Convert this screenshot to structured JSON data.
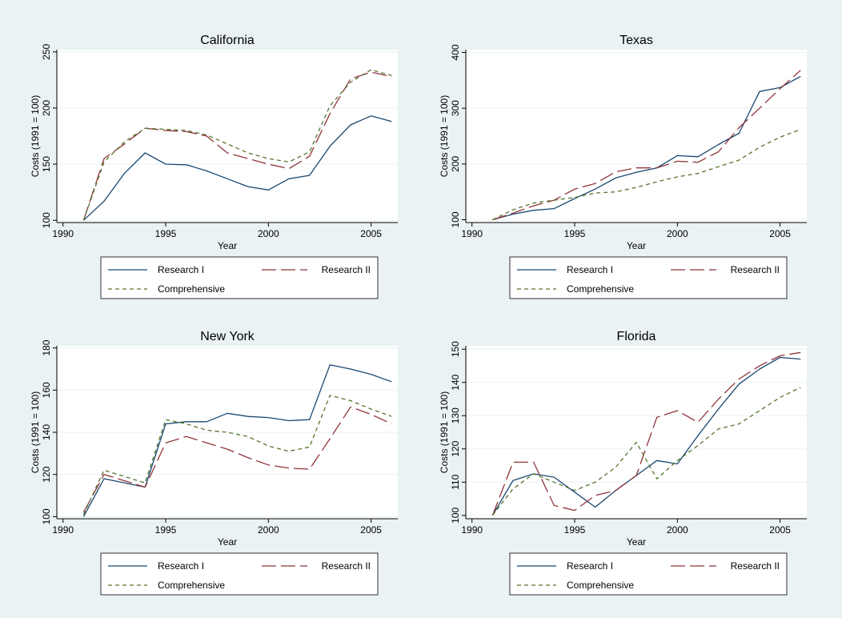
{
  "figure": {
    "background": "#eaf2f3",
    "plot_background": "#ffffff",
    "grid_color": "#eaf2f3",
    "axis_color": "#000000"
  },
  "series_styles": [
    {
      "name": "Research I",
      "color": "#1a476f",
      "dash": "solid"
    },
    {
      "name": "Research II",
      "color": "#90353b",
      "dash": "long-dash"
    },
    {
      "name": "Comprehensive",
      "color": "#55752f",
      "dash": "short-dash"
    }
  ],
  "chart_data": [
    {
      "type": "line",
      "title": "California",
      "xlabel": "Year",
      "ylabel": "Costs (1991 = 100)",
      "xlim": [
        1989.7,
        2006.3
      ],
      "ylim": [
        98,
        252
      ],
      "xticks": [
        1990,
        1995,
        2000,
        2005
      ],
      "yticks": [
        100,
        150,
        200,
        250
      ],
      "grid": true,
      "legend": "bottom",
      "x": [
        1991,
        1992,
        1993,
        1994,
        1995,
        1996,
        1997,
        1998,
        1999,
        2000,
        2001,
        2002,
        2003,
        2004,
        2005,
        2006
      ],
      "series": [
        {
          "name": "Research I",
          "values": [
            100,
            117,
            142,
            160,
            150,
            149.5,
            144,
            137,
            130,
            127,
            137,
            140,
            166,
            185,
            193,
            188
          ]
        },
        {
          "name": "Research II",
          "values": [
            100,
            155,
            168,
            182,
            180,
            179,
            175,
            160,
            155,
            150,
            146,
            157,
            195,
            226,
            232,
            228
          ]
        },
        {
          "name": "Comprehensive",
          "values": [
            100,
            152,
            170,
            182,
            181,
            180,
            176,
            168,
            160,
            155,
            152,
            161,
            202,
            223,
            234,
            229
          ]
        }
      ]
    },
    {
      "type": "line",
      "title": "Texas",
      "xlabel": "Year",
      "ylabel": "Costs (1991 = 100)",
      "xlim": [
        1989.7,
        2006.3
      ],
      "ylim": [
        95,
        405
      ],
      "xticks": [
        1990,
        1995,
        2000,
        2005
      ],
      "yticks": [
        100,
        200,
        300,
        400
      ],
      "grid": true,
      "legend": "bottom",
      "x": [
        1991,
        1992,
        1993,
        1994,
        1995,
        1996,
        1997,
        1998,
        1999,
        2000,
        2001,
        2002,
        2003,
        2004,
        2005,
        2006
      ],
      "series": [
        {
          "name": "Research I",
          "values": [
            100,
            110,
            117,
            120,
            138,
            155,
            175,
            185,
            193,
            215,
            213,
            235,
            255,
            330,
            337,
            357
          ]
        },
        {
          "name": "Research II",
          "values": [
            100,
            112,
            125,
            135,
            155,
            165,
            186,
            193,
            193,
            205,
            203,
            222,
            265,
            300,
            335,
            368
          ]
        },
        {
          "name": "Comprehensive",
          "values": [
            100,
            118,
            130,
            135,
            140,
            148,
            150,
            158,
            168,
            177,
            183,
            195,
            207,
            230,
            248,
            262
          ]
        }
      ]
    },
    {
      "type": "line",
      "title": "New York",
      "xlabel": "Year",
      "ylabel": "Costs (1991 = 100)",
      "xlim": [
        1989.7,
        2006.3
      ],
      "ylim": [
        99,
        181
      ],
      "xticks": [
        1990,
        1995,
        2000,
        2005
      ],
      "yticks": [
        100,
        120,
        140,
        160,
        180
      ],
      "grid": true,
      "legend": "bottom",
      "x": [
        1991,
        1992,
        1993,
        1994,
        1995,
        1996,
        1997,
        1998,
        1999,
        2000,
        2001,
        2002,
        2003,
        2004,
        2005,
        2006
      ],
      "series": [
        {
          "name": "Research I",
          "values": [
            100,
            118,
            116,
            114,
            144,
            145,
            145,
            149,
            147.5,
            147,
            145.5,
            146,
            172,
            170,
            167.5,
            164
          ]
        },
        {
          "name": "Research II",
          "values": [
            102,
            120,
            117,
            114,
            135,
            138,
            135,
            132,
            128,
            124.5,
            123,
            122.5,
            137,
            152,
            148.5,
            144
          ]
        },
        {
          "name": "Comprehensive",
          "values": [
            101,
            122,
            119,
            116,
            146,
            144,
            141,
            140,
            138,
            133.5,
            131,
            133,
            157.5,
            155,
            151,
            147.5
          ]
        }
      ]
    },
    {
      "type": "line",
      "title": "Florida",
      "xlabel": "Year",
      "ylabel": "Costs (1991 = 100)",
      "xlim": [
        1989.7,
        2006.3
      ],
      "ylim": [
        99,
        151
      ],
      "xticks": [
        1990,
        1995,
        2000,
        2005
      ],
      "yticks": [
        100,
        110,
        120,
        130,
        140,
        150
      ],
      "grid": true,
      "legend": "bottom",
      "x": [
        1991,
        1992,
        1993,
        1994,
        1995,
        1996,
        1997,
        1998,
        1999,
        2000,
        2001,
        2002,
        2003,
        2004,
        2005,
        2006
      ],
      "series": [
        {
          "name": "Research I",
          "values": [
            100,
            110.5,
            112.5,
            111.5,
            107,
            102.5,
            107.5,
            112,
            116.5,
            115.5,
            124,
            132,
            139.5,
            144,
            147.5,
            147
          ]
        },
        {
          "name": "Research II",
          "values": [
            100,
            116,
            116,
            103,
            101.5,
            106,
            107.5,
            112,
            129.5,
            131.5,
            128,
            135,
            141,
            145,
            148,
            149
          ]
        },
        {
          "name": "Comprehensive",
          "values": [
            100,
            108,
            112.5,
            110,
            107.5,
            110,
            114.5,
            122,
            111,
            116.5,
            121,
            126,
            127.5,
            131.5,
            135.5,
            138.5
          ]
        }
      ]
    }
  ]
}
